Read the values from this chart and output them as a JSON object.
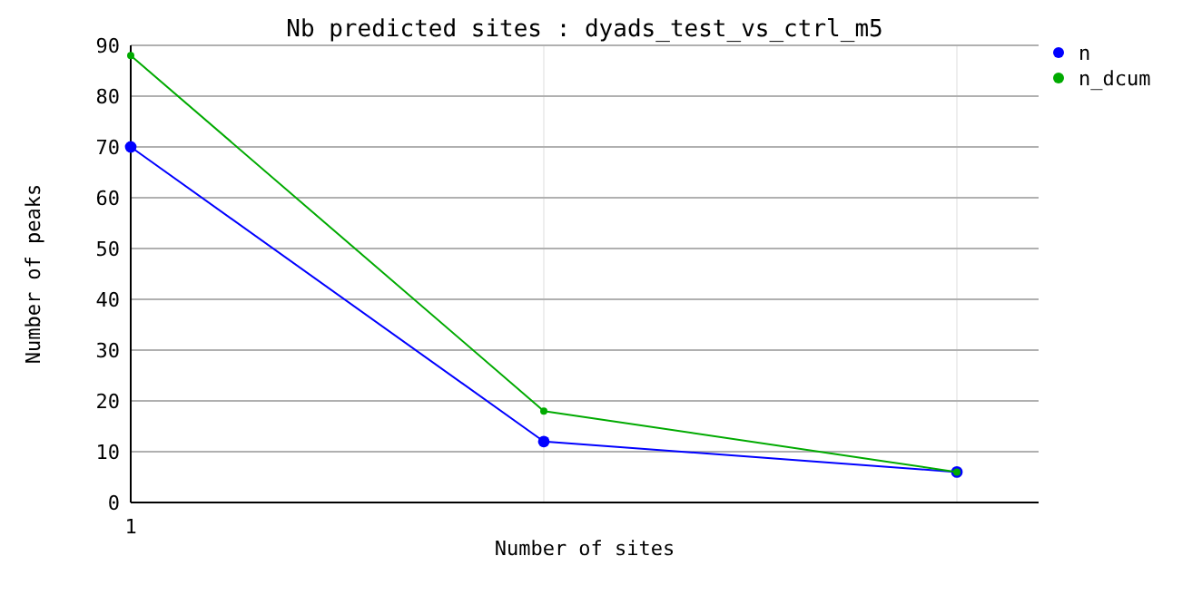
{
  "chart_data": {
    "type": "line",
    "title": "Nb predicted sites : dyads_test_vs_ctrl_m5",
    "xlabel": "Number of sites",
    "ylabel": "Number of peaks",
    "categories": [
      "1",
      null,
      null
    ],
    "series": [
      {
        "name": "n",
        "color": "#0000ff",
        "values": [
          70,
          12,
          6
        ]
      },
      {
        "name": "n_dcum",
        "color": "#00aa00",
        "values": [
          88,
          18,
          6
        ]
      }
    ],
    "ylim": [
      0,
      90
    ],
    "yticks": [
      0,
      10,
      20,
      30,
      40,
      50,
      60,
      70,
      80,
      90
    ],
    "grid": true,
    "legend": "top right",
    "marker": "circle",
    "line_style": "solid"
  }
}
